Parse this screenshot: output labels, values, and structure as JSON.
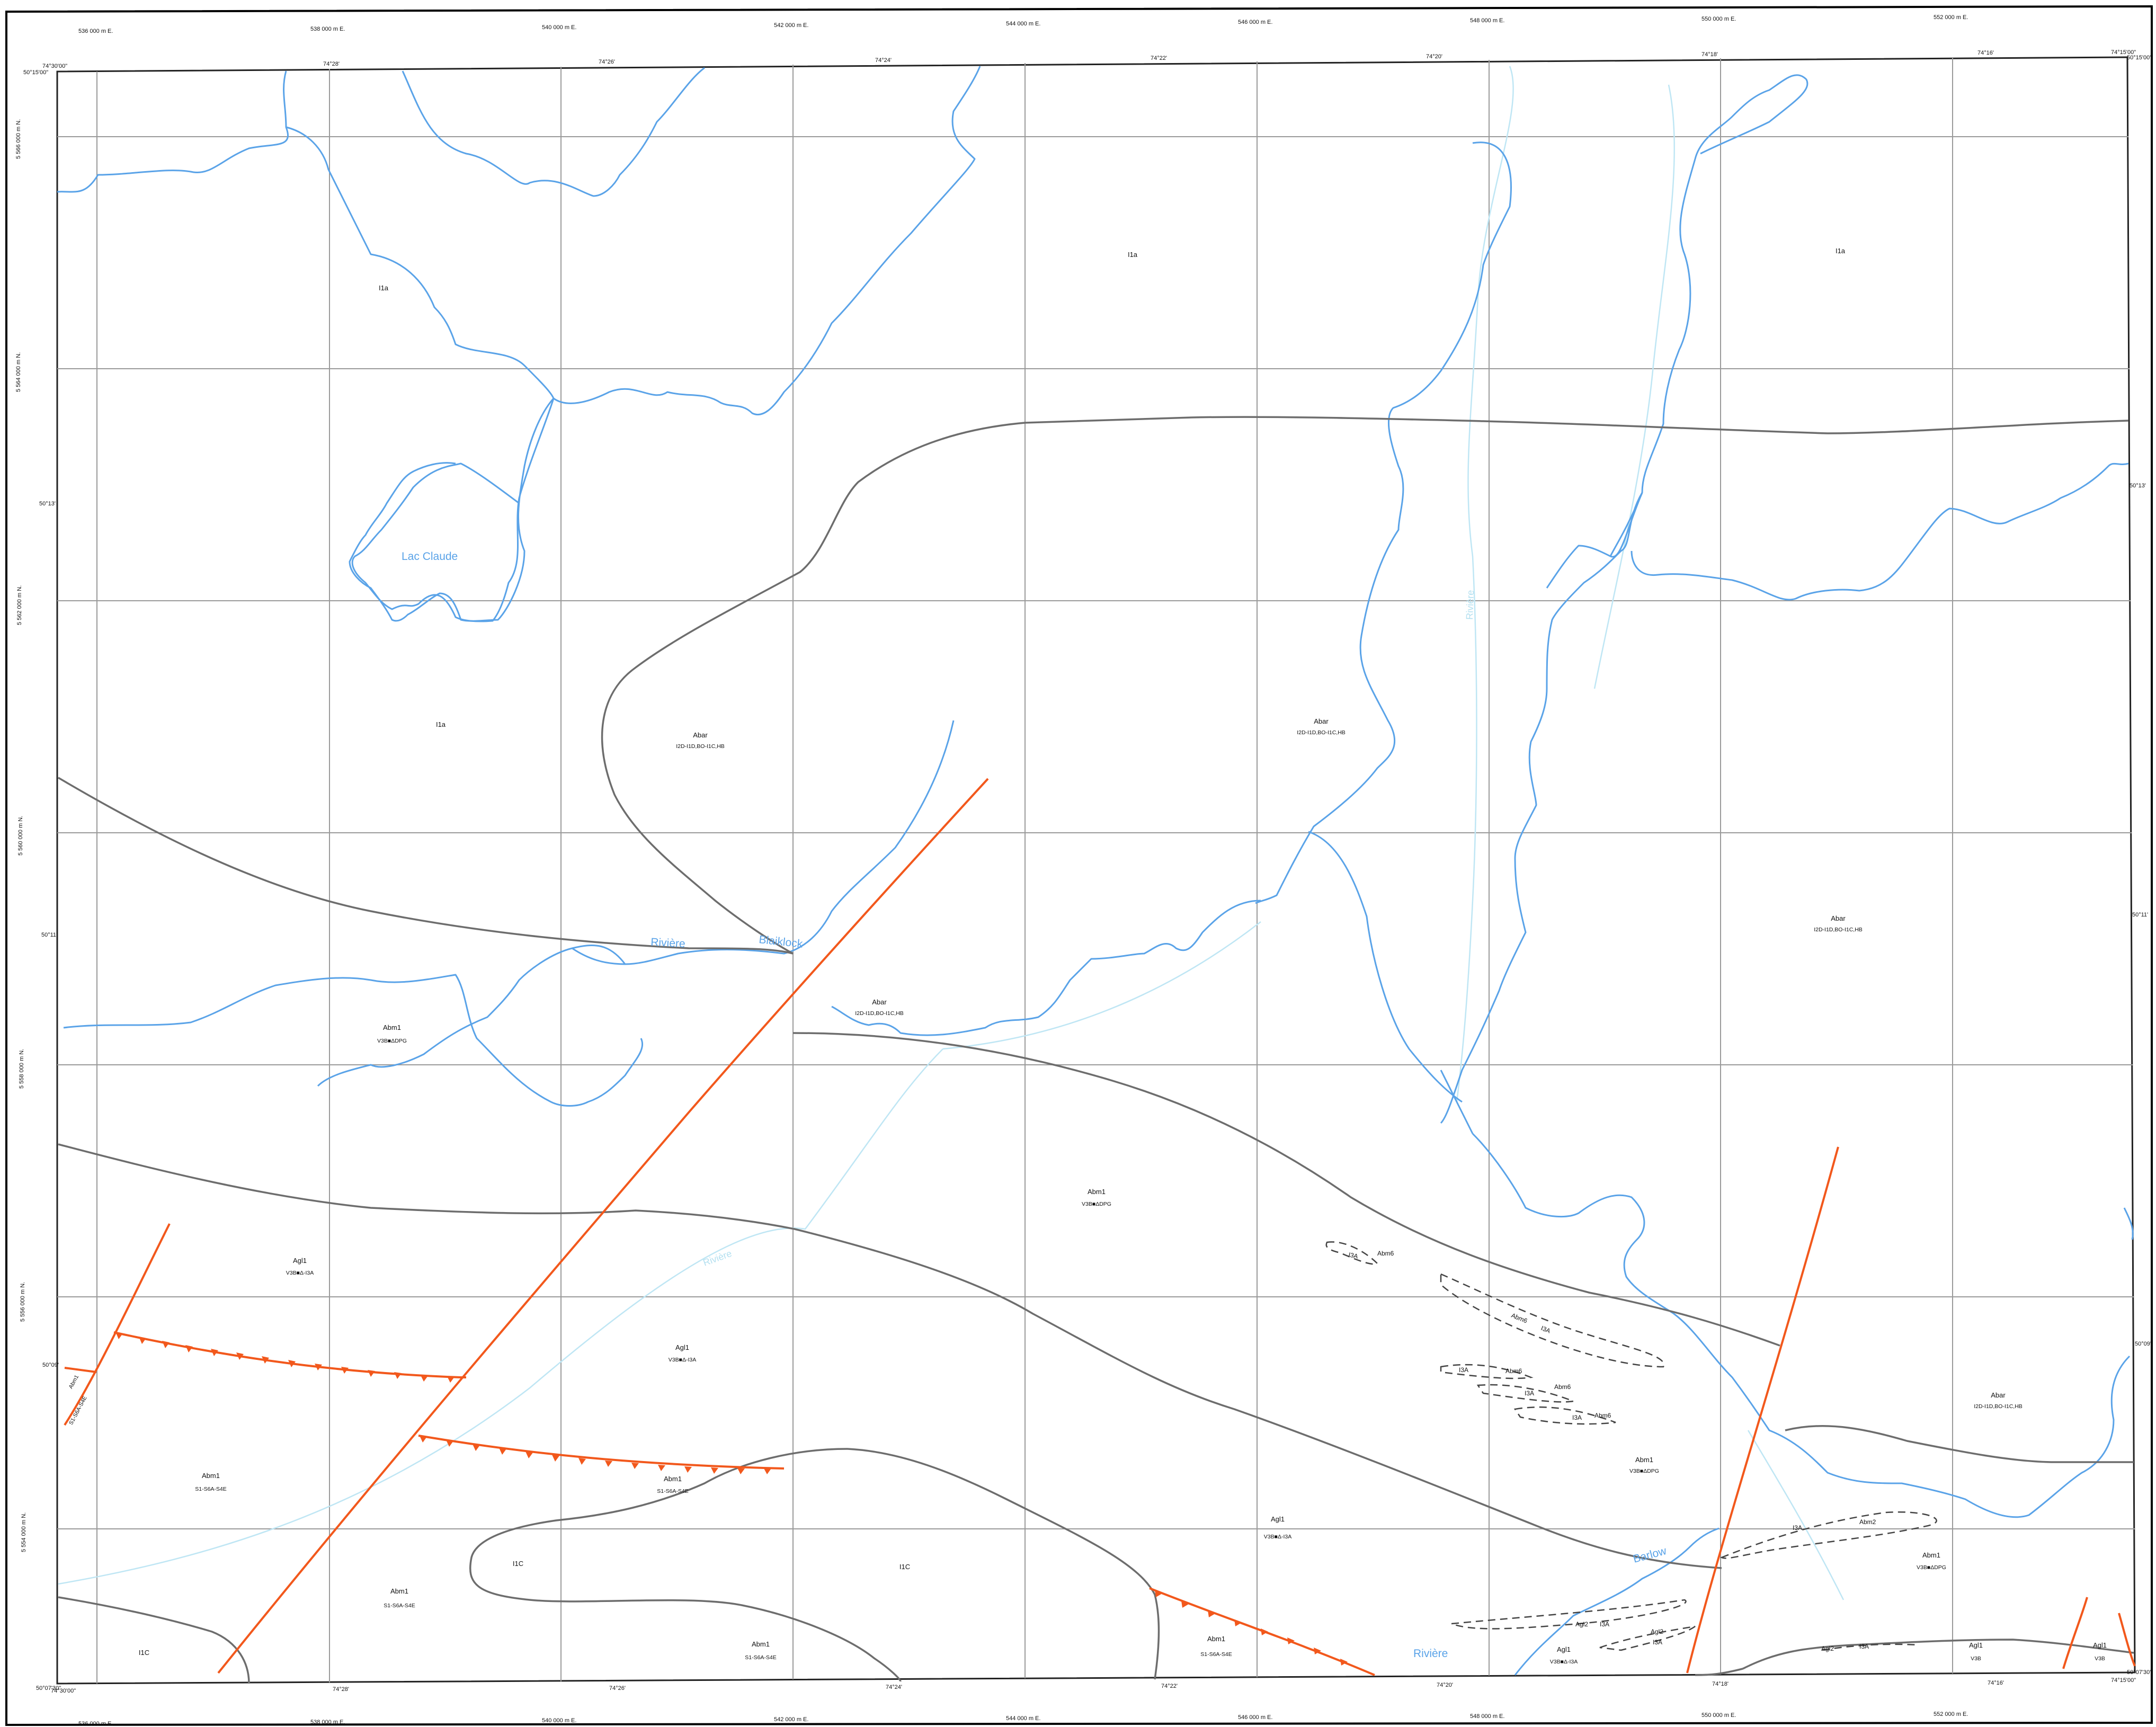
{
  "easting_labels": [
    "536 000 m E.",
    "538 000 m E.",
    "540 000 m E.",
    "542 000 m E.",
    "544 000 m E.",
    "546 000 m E.",
    "548 000 m E.",
    "550 000 m E.",
    "552 000 m E."
  ],
  "northing_labels": [
    "5 566 000 m N.",
    "5 564 000 m N.",
    "5 562 000 m N.",
    "5 560 000 m N.",
    "5 558 000 m N.",
    "5 556 000 m N.",
    "5 554 000 m N."
  ],
  "top_longitudes": [
    "74°30'00\"",
    "74°28'",
    "74°26'",
    "74°24'",
    "74°22'",
    "74°20'",
    "74°18'",
    "74°16'",
    "74°15'00\""
  ],
  "bottom_longitudes": [
    "74°30'00\"",
    "74°28'",
    "74°26'",
    "74°24'",
    "74°22'",
    "74°20'",
    "74°18'",
    "74°16'",
    "74°15'00\""
  ],
  "left_latitudes": [
    "50°15'00\"",
    "50°13'",
    "50°11'",
    "50°09'",
    "50°07'30\""
  ],
  "right_latitudes": [
    "50°15'00\"",
    "50°13'",
    "50°11'",
    "50°09'",
    "50°07'30\""
  ],
  "places": {
    "lake": "Lac Claude",
    "river_word": "Rivière",
    "river_name": "Blaiklock",
    "barlow": "Barlow",
    "riviere_south": "Rivière",
    "faint_a": "Rivière",
    "faint_b": "Rivière"
  },
  "units": {
    "i1a_1": "I1a",
    "i1a_2": "I1a",
    "i1a_3": "I1a",
    "i1a_4": "I1a",
    "abar_1": "Abar",
    "abar_1_sub": "I2D-I1D,BO-I1C,HB",
    "abar_2": "Abar",
    "abar_2_sub": "I2D-I1D,BO-I1C,HB",
    "abar_3": "Abar",
    "abar_3_sub": "I2D-I1D,BO-I1C,HB",
    "abar_4": "Abar",
    "abar_4_sub": "I2D-I1D,BO-I1C,HB",
    "abar_5": "Abar",
    "abar_5_sub": "I2D-I1D,BO-I1C,HB",
    "abm1_1": "Abm1",
    "abm1_1_sub": "V3B■ΔDPG",
    "abm1_2": "Abm1",
    "abm1_2_sub": "V3B■ΔDPG",
    "abm1_3": "Abm1",
    "abm1_3_sub": "V3B■ΔDPG",
    "abm1_4": "Abm1",
    "abm1_4_sub": "V3B■ΔDPG",
    "agl1_1": "Agl1",
    "agl1_1_sub": "V3B■Δ-I3A",
    "agl1_2": "Agl1",
    "agl1_2_sub": "V3B■Δ-I3A",
    "agl1_3": "Agl1",
    "agl1_3_sub": "V3B■Δ-I3A",
    "agl1_4": "Agl1",
    "agl1_4_sub": "V3B■Δ-I3A",
    "agl1_5": "Agl1",
    "agl1_5_sub": "V3B",
    "agl1_6": "Agl1",
    "agl1_6_sub": "V3B",
    "abm1_s1": "Abm1",
    "abm1_s1_sub": "S1-S6A-S4E",
    "abm1_s2": "Abm1",
    "abm1_s2_sub": "S1-S6A-S4E",
    "abm1_s3": "Abm1",
    "abm1_s3_sub": "S1-S6A-S4E",
    "abm1_s4": "Abm1",
    "abm1_s4_sub": "S1-S6A-S4E",
    "abm1_s5": "Abm1",
    "abm1_s5_sub": "S1-S6A-S4E",
    "i1c_1": "I1C",
    "i1c_2": "I1C",
    "i1c_3": "I1C",
    "fault_label": "S1-S6A-S4E",
    "abm1_fault": "Abm1",
    "lens_1": "I3A",
    "lens_1b": "Abm6",
    "lens_2": "Abm6",
    "lens_2b": "I3A",
    "lens_3": "I3A",
    "lens_3b": "Abm6",
    "lens_4": "I3A",
    "lens_4b": "Abm6",
    "lens_5": "I3A",
    "lens_5b": "Abm6",
    "lens_6": "Abm2",
    "lens_6b": "I3A",
    "lens_7": "Agl2",
    "lens_7b": "I3A",
    "lens_8": "Agl2",
    "lens_8b": "I3A",
    "lens_9": "Agl2",
    "lens_9b": "I3A"
  },
  "colors": {
    "hydrography": "#5aa3e8",
    "contact": "#6d6d6d",
    "fault": "#f2581c",
    "grid": "#9a9a9a"
  }
}
